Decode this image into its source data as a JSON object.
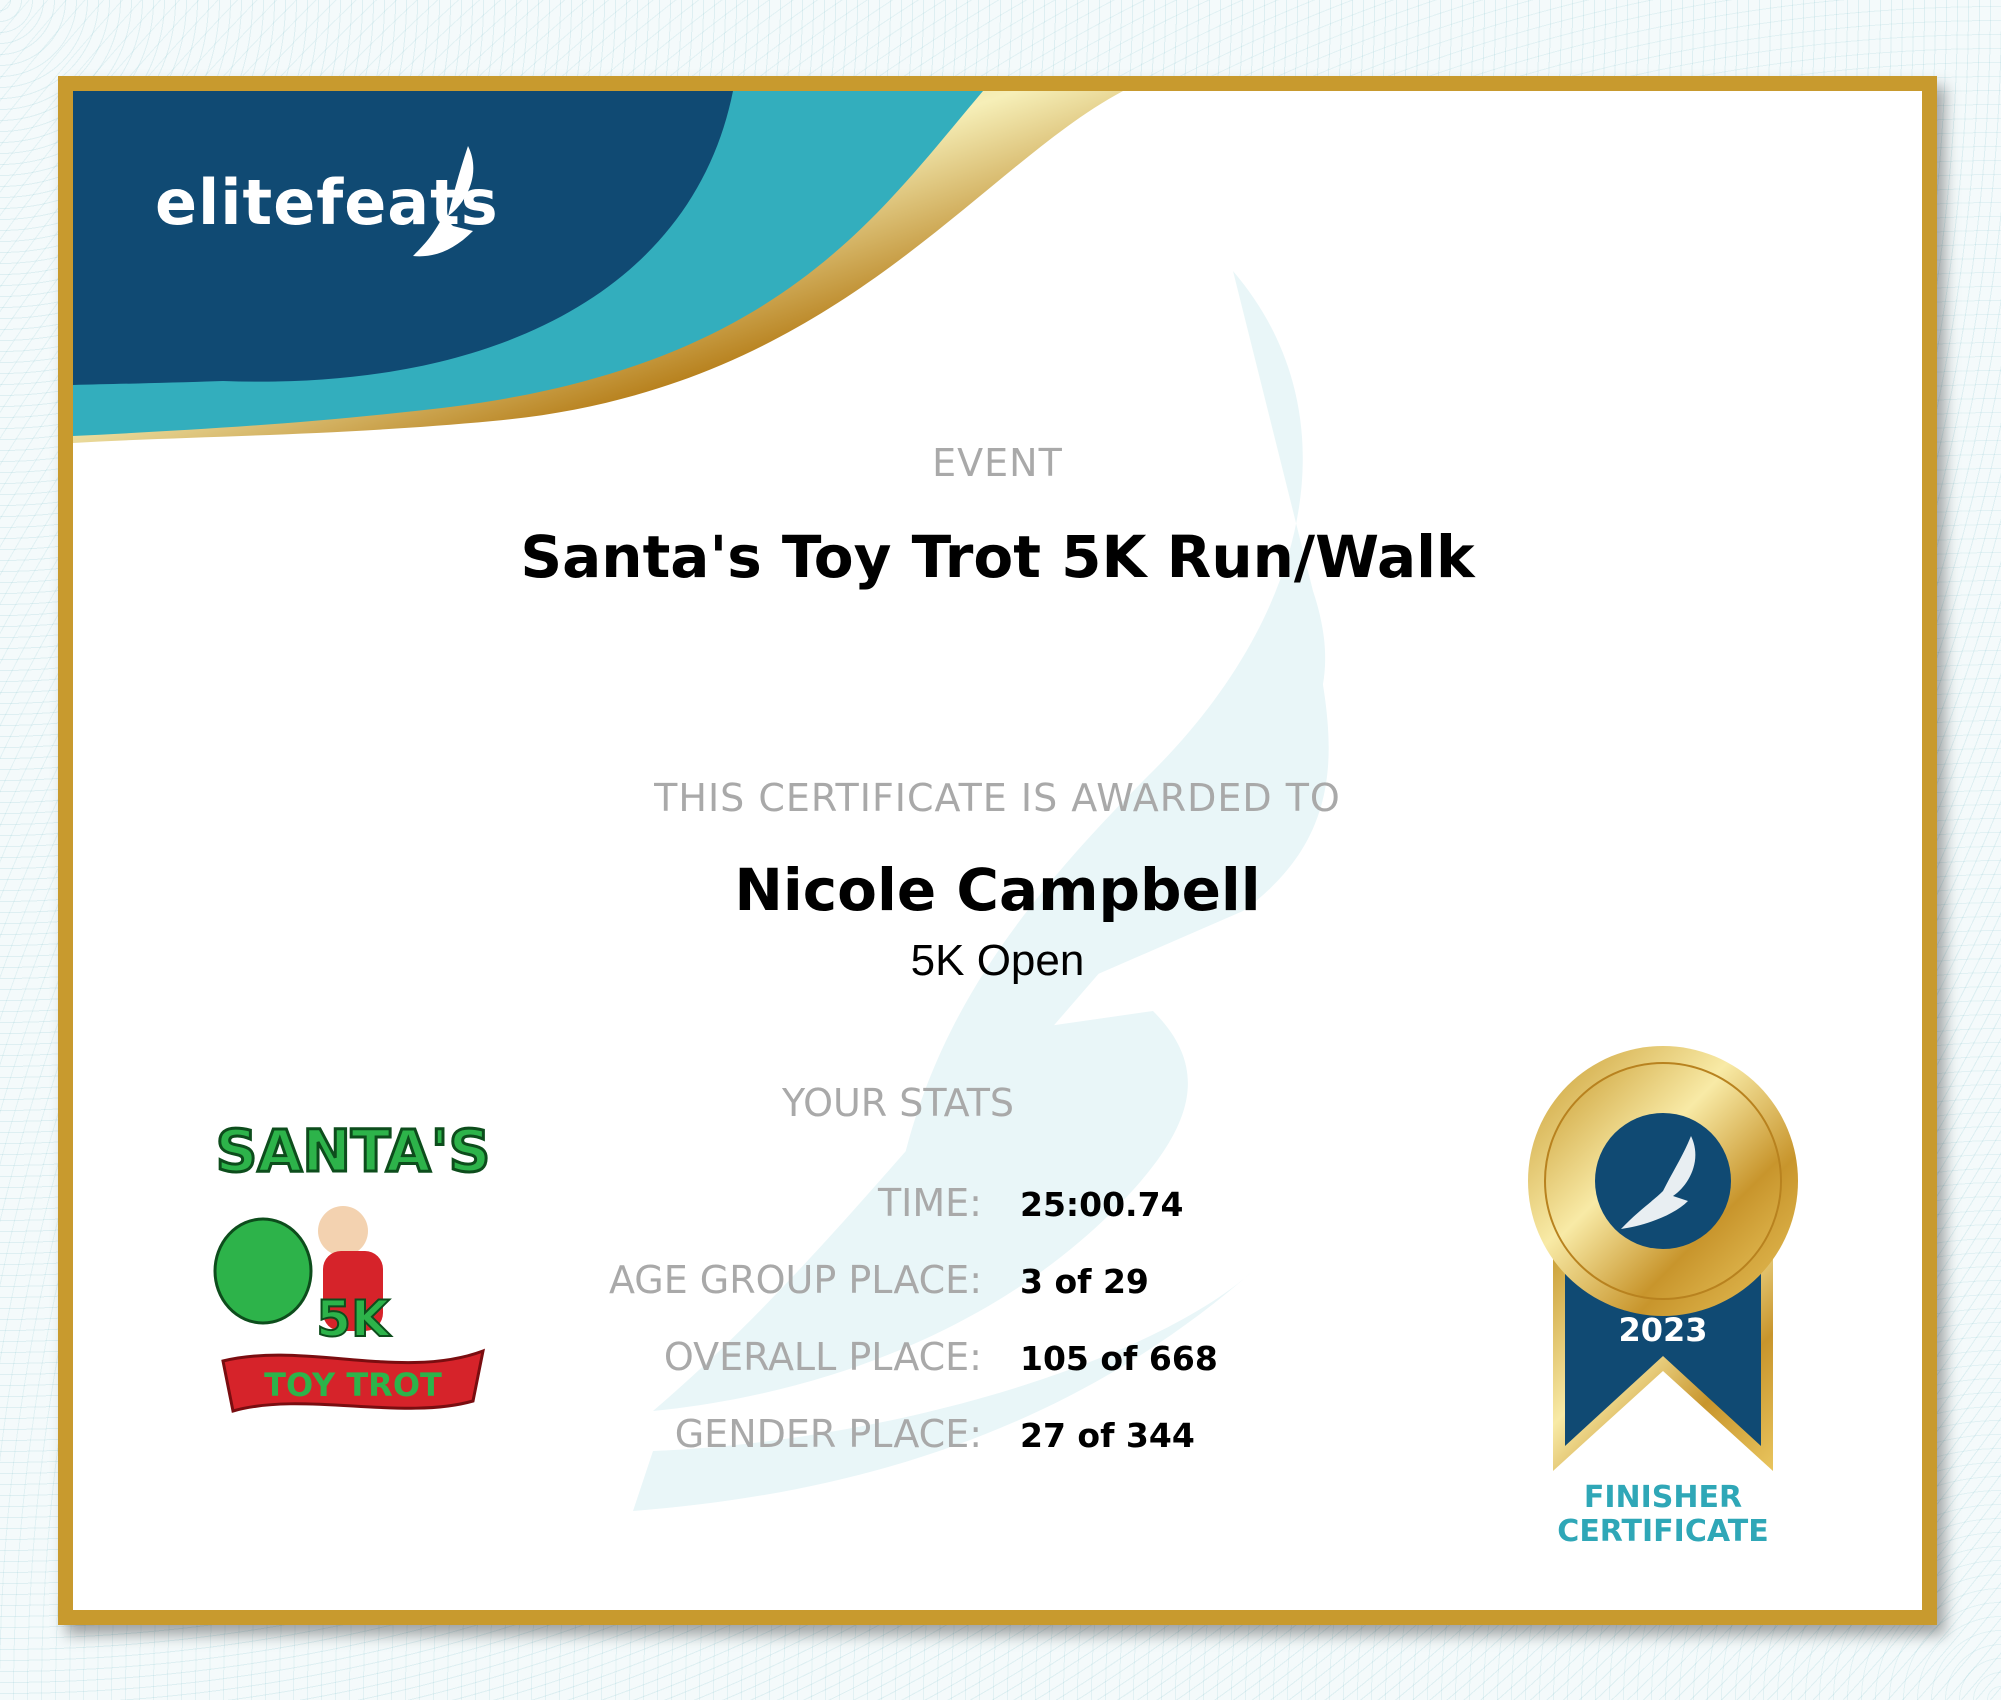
{
  "brand": {
    "logo_text": "elitefeats",
    "colors": {
      "navy": "#104a73",
      "teal": "#33aebd",
      "gold": "#c89a2e"
    }
  },
  "event": {
    "label": "EVENT",
    "name": "Santa's Toy Trot 5K Run/Walk"
  },
  "award": {
    "label": "THIS CERTIFICATE IS AWARDED TO",
    "name": "Nicole Campbell",
    "division": "5K Open"
  },
  "stats": {
    "title": "YOUR STATS",
    "rows": [
      {
        "label": "TIME:",
        "value": "25:00.74"
      },
      {
        "label": "AGE GROUP PLACE:",
        "value": "3 of 29"
      },
      {
        "label": "OVERALL PLACE:",
        "value": "105 of 668"
      },
      {
        "label": "GENDER PLACE:",
        "value": "27 of 344"
      }
    ]
  },
  "race_logo": {
    "text_top": "SANTA'S",
    "text_mid": "5K",
    "text_bottom": "TOY TROT"
  },
  "badge": {
    "year": "2023",
    "line1": "FINISHER",
    "line2": "CERTIFICATE"
  }
}
